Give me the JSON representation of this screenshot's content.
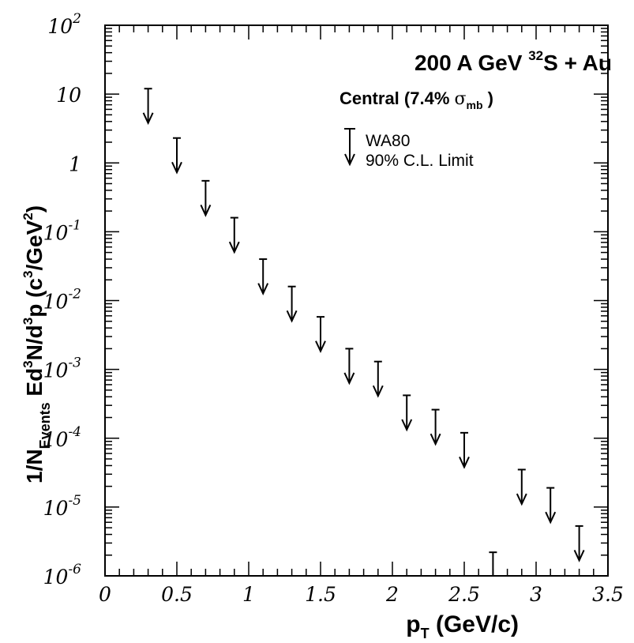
{
  "chart_data": {
    "type": "scatter",
    "title": "200 A GeV ³²S + Au",
    "subtitle": "Central (7.4% σ_mb)",
    "title_parts": {
      "energy": "200 A GeV ",
      "isotope_mass": "32",
      "system": "S + Au"
    },
    "subtitle_parts": {
      "text": "Central  (7.4% ",
      "sigma": "σ",
      "sigma_sub": "mb",
      "close": " )"
    },
    "xlabel_parts": {
      "p": "p",
      "sub": "T",
      "rest": " (GeV/c)"
    },
    "ylabel_parts": {
      "a": "1/N",
      "a_sub": "Events",
      "b": "  Ed",
      "b_sup": "3",
      "c": "N/d",
      "c_sup": "3",
      "d": "p   (c",
      "d_sup": "3",
      "e": "/GeV",
      "e_sup": "2",
      "f": ")"
    },
    "legend": {
      "placement": "top-right",
      "line1": "WA80",
      "line2": "90% C.L. Limit"
    },
    "xlim": [
      0,
      3.5
    ],
    "ylim": [
      1e-06,
      100
    ],
    "yscale": "log",
    "grid": false,
    "x_ticks": [
      {
        "v": 0,
        "label": "0"
      },
      {
        "v": 0.5,
        "label": "0.5"
      },
      {
        "v": 1,
        "label": "1"
      },
      {
        "v": 1.5,
        "label": "1.5"
      },
      {
        "v": 2,
        "label": "2"
      },
      {
        "v": 2.5,
        "label": "2.5"
      },
      {
        "v": 3,
        "label": "3"
      },
      {
        "v": 3.5,
        "label": "3.5"
      }
    ],
    "y_ticks": [
      {
        "exp": 2,
        "base": "10",
        "sup": "2"
      },
      {
        "exp": 1,
        "base": "10",
        "sup": ""
      },
      {
        "exp": 0,
        "base": "1",
        "sup": ""
      },
      {
        "exp": -1,
        "base": "10",
        "sup": "-1"
      },
      {
        "exp": -2,
        "base": "10",
        "sup": "-2"
      },
      {
        "exp": -3,
        "base": "10",
        "sup": "-3"
      },
      {
        "exp": -4,
        "base": "10",
        "sup": "-4"
      },
      {
        "exp": -5,
        "base": "10",
        "sup": "-5"
      },
      {
        "exp": -6,
        "base": "10",
        "sup": "-6"
      }
    ],
    "series": [
      {
        "name": "WA80",
        "marker": "upper-limit-arrow",
        "points": [
          {
            "x": 0.3,
            "y": 12.0
          },
          {
            "x": 0.5,
            "y": 2.3
          },
          {
            "x": 0.7,
            "y": 0.55
          },
          {
            "x": 0.9,
            "y": 0.16
          },
          {
            "x": 1.1,
            "y": 0.04
          },
          {
            "x": 1.3,
            "y": 0.016
          },
          {
            "x": 1.5,
            "y": 0.0058
          },
          {
            "x": 1.7,
            "y": 0.002
          },
          {
            "x": 1.9,
            "y": 0.0013
          },
          {
            "x": 2.1,
            "y": 0.00042
          },
          {
            "x": 2.3,
            "y": 0.00026
          },
          {
            "x": 2.5,
            "y": 0.00012
          },
          {
            "x": 2.7,
            "y": 2.2e-06
          },
          {
            "x": 2.9,
            "y": 3.5e-05
          },
          {
            "x": 3.1,
            "y": 1.9e-05
          },
          {
            "x": 3.3,
            "y": 5.3e-06
          }
        ]
      }
    ]
  }
}
